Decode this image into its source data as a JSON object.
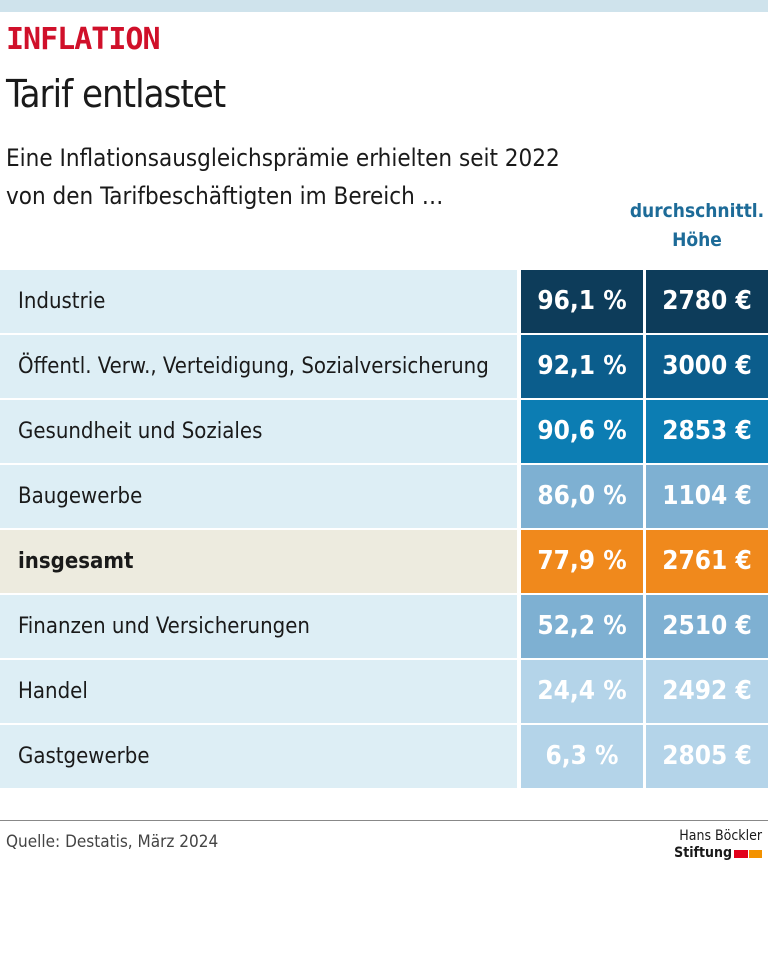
{
  "kicker": "INFLATION",
  "title": "Tarif entlastet",
  "subtitle": [
    "Eine Inflationsausgleichsprämie erhielten seit 2022",
    "von den Tarifbeschäftigten im Bereich …"
  ],
  "column_header": [
    "durchschnittl.",
    "Höhe"
  ],
  "rows": [
    {
      "label": "Industrie",
      "share": "96,1 %",
      "amount": "2780 €",
      "color": "#0d3c5a"
    },
    {
      "label": "Öffentl. Verw., Verteidigung, Sozialversicherung",
      "share": "92,1 %",
      "amount": "3000 €",
      "color": "#0b5d8c"
    },
    {
      "label": "Gesundheit und Soziales",
      "share": "90,6 %",
      "amount": "2853 €",
      "color": "#0c7db3"
    },
    {
      "label": "Baugewerbe",
      "share": "86,0 %",
      "amount": "1104 €",
      "color": "#7eb0d2"
    },
    {
      "label": "insgesamt",
      "share": "77,9 %",
      "amount": "2761 €",
      "color": "#f0891c",
      "highlight": true
    },
    {
      "label": "Finanzen und Versicherungen",
      "share": "52,2 %",
      "amount": "2510 €",
      "color": "#7eb0d2"
    },
    {
      "label": "Handel",
      "share": "24,4 %",
      "amount": "2492 €",
      "color": "#b4d4e9"
    },
    {
      "label": "Gastgewerbe",
      "share": "6,3 %",
      "amount": "2805 €",
      "color": "#b4d4e9"
    }
  ],
  "source": "Quelle: Destatis, März 2024",
  "logo": [
    "Hans Böckler",
    "Stiftung"
  ]
}
